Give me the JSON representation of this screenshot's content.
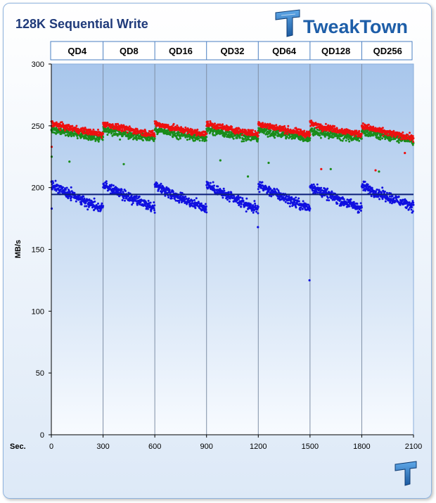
{
  "chart_data": {
    "type": "scatter",
    "title": "128K Sequential Write",
    "ylabel": "MB/s",
    "xlabel": "Sec.",
    "xlim": [
      0,
      2100
    ],
    "ylim": [
      0,
      300
    ],
    "x_ticks": [
      0,
      300,
      600,
      900,
      1200,
      1500,
      1800,
      2100
    ],
    "y_ticks": [
      0,
      50,
      100,
      150,
      200,
      250,
      300
    ],
    "grid": "vertical lines at section boundaries",
    "sections": [
      {
        "label": "QD4",
        "x_start": 0,
        "x_end": 300
      },
      {
        "label": "QD8",
        "x_start": 300,
        "x_end": 600
      },
      {
        "label": "QD16",
        "x_start": 600,
        "x_end": 900
      },
      {
        "label": "QD32",
        "x_start": 900,
        "x_end": 1200
      },
      {
        "label": "QD64",
        "x_start": 1200,
        "x_end": 1500
      },
      {
        "label": "QD128",
        "x_start": 1500,
        "x_end": 1800
      },
      {
        "label": "QD256",
        "x_start": 1800,
        "x_end": 2100
      }
    ],
    "series": [
      {
        "color": "#1010e0",
        "trend_per_section": [
          {
            "start": 203,
            "end": 183
          },
          {
            "start": 203,
            "end": 183
          },
          {
            "start": 203,
            "end": 183
          },
          {
            "start": 203,
            "end": 182
          },
          {
            "start": 203,
            "end": 183
          },
          {
            "start": 202,
            "end": 183
          },
          {
            "start": 202,
            "end": 185
          }
        ],
        "spread": 4,
        "points_per_section": 220,
        "outliers": [
          [
            1497,
            125
          ],
          [
            1198,
            168
          ],
          [
            2,
            183
          ]
        ],
        "average_line": 194.5
      },
      {
        "color": "#1a8c1a",
        "trend_per_section": [
          {
            "start": 247,
            "end": 240
          },
          {
            "start": 247,
            "end": 240
          },
          {
            "start": 247,
            "end": 240
          },
          {
            "start": 247,
            "end": 240
          },
          {
            "start": 247,
            "end": 240
          },
          {
            "start": 246,
            "end": 240
          },
          {
            "start": 246,
            "end": 238
          }
        ],
        "spread": 3.5,
        "points_per_section": 200,
        "outliers": [
          [
            2,
            225
          ],
          [
            105,
            221
          ],
          [
            420,
            219
          ],
          [
            980,
            222
          ],
          [
            1140,
            209
          ],
          [
            1260,
            220
          ],
          [
            1620,
            215
          ],
          [
            1900,
            213
          ]
        ],
        "average_line": null
      },
      {
        "color": "#ee1010",
        "trend_per_section": [
          {
            "start": 252,
            "end": 243
          },
          {
            "start": 252,
            "end": 243
          },
          {
            "start": 252,
            "end": 243
          },
          {
            "start": 252,
            "end": 243
          },
          {
            "start": 252,
            "end": 243
          },
          {
            "start": 252,
            "end": 243
          },
          {
            "start": 250,
            "end": 240
          }
        ],
        "spread": 2.5,
        "points_per_section": 200,
        "outliers": [
          [
            2,
            233
          ],
          [
            1565,
            215
          ],
          [
            1880,
            214
          ],
          [
            2050,
            228
          ]
        ],
        "average_line": null
      }
    ]
  },
  "branding": {
    "logo_text": "TweakTown",
    "logo_icon": "tweaktown-tt-icon",
    "watermark_icon": "tweaktown-tt-icon"
  }
}
